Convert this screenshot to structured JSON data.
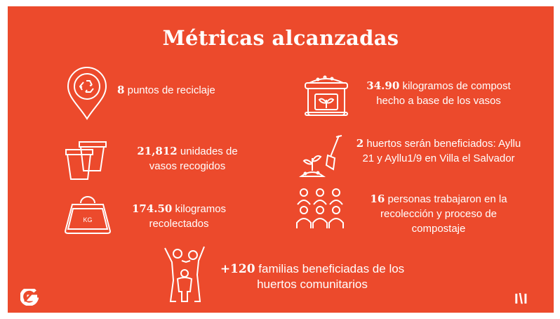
{
  "title": "Métricas alcanzadas",
  "metrics": [
    {
      "icon": "recycling-point-icon",
      "number": "8",
      "text": "puntos de reciclaje"
    },
    {
      "icon": "cups-icon",
      "number": "21,812",
      "text": "unidades de vasos recogidos"
    },
    {
      "icon": "kg-weight-icon",
      "number": "174.50",
      "text": "kilogramos recolectados"
    },
    {
      "icon": "compost-bag-icon",
      "number": "34.90",
      "text": "kilogramos de compost hecho a base de los vasos"
    },
    {
      "icon": "garden-shovel-icon",
      "number": "2",
      "text": "huertos serán beneficiados: Ayllu 21 y Ayllu1/9 en Villa el Salvador"
    },
    {
      "icon": "people-group-icon",
      "number": "16",
      "text": "personas trabajaron en la recolección y proceso de compostaje"
    },
    {
      "icon": "family-icon",
      "number": "+120",
      "text": "familias beneficiadas de los huertos comunitarios"
    }
  ],
  "colors": {
    "background": "#ec4a2c",
    "foreground": "#ffffff"
  },
  "brand": {
    "right_logo": "I\\I"
  }
}
